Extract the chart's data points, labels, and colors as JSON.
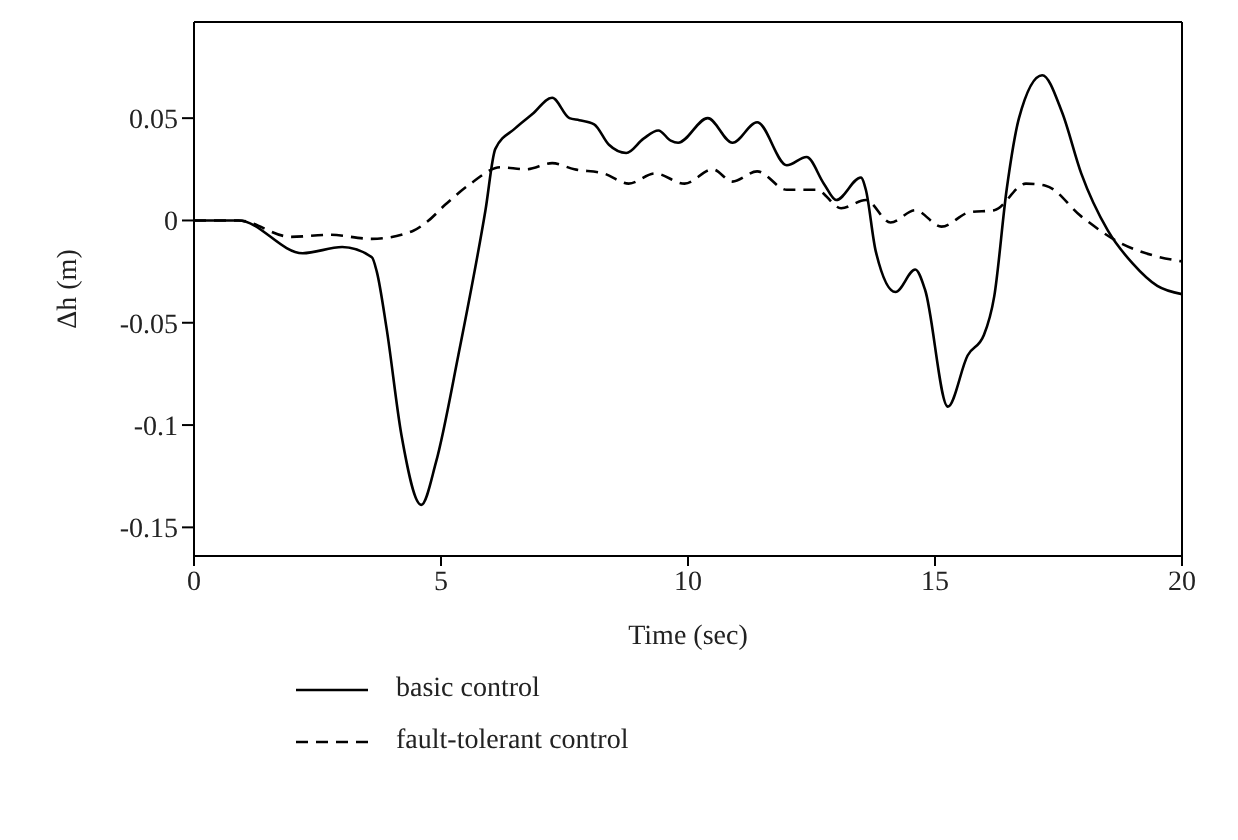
{
  "chart_data": {
    "type": "line",
    "xlabel": "Time (sec)",
    "ylabel": "Δh (m)",
    "xlim": [
      0,
      20
    ],
    "xticks": [
      0,
      5,
      10,
      15,
      20
    ],
    "ylim": [
      -0.164,
      0.097
    ],
    "yticks": [
      -0.15,
      -0.1,
      -0.05,
      0,
      0.05
    ],
    "legend": "bottom",
    "marker": "none",
    "series": [
      {
        "name": "basic control",
        "color": "#000000",
        "line_style": "solid",
        "x": [
          0,
          0.9,
          2.2,
          3.0,
          3.6,
          3.7,
          3.9,
          4.2,
          4.6,
          4.9,
          5.35,
          5.9,
          6.1,
          6.5,
          6.85,
          7.25,
          7.6,
          7.8,
          8.1,
          8.4,
          8.75,
          9.1,
          9.4,
          9.65,
          9.8,
          10.4,
          10.9,
          11.4,
          12.0,
          12.4,
          12.75,
          13.0,
          13.5,
          13.6,
          13.8,
          14.2,
          14.6,
          14.8,
          15.26,
          15.66,
          15.99,
          16.2,
          16.45,
          16.7,
          17.17,
          17.57,
          17.96,
          18.5,
          19.0,
          19.5,
          20
        ],
        "values": [
          0,
          0,
          -0.016,
          -0.013,
          -0.018,
          -0.025,
          -0.053,
          -0.105,
          -0.139,
          -0.118,
          -0.066,
          0.005,
          0.035,
          0.045,
          0.052,
          0.06,
          0.05,
          0.049,
          0.047,
          0.037,
          0.033,
          0.04,
          0.044,
          0.039,
          0.038,
          0.05,
          0.038,
          0.048,
          0.027,
          0.031,
          0.018,
          0.01,
          0.021,
          0.015,
          -0.015,
          -0.035,
          -0.024,
          -0.034,
          -0.091,
          -0.066,
          -0.056,
          -0.037,
          0.015,
          0.05,
          0.071,
          0.053,
          0.023,
          -0.005,
          -0.021,
          -0.032,
          -0.036
        ]
      },
      {
        "name": "fault-tolerant control",
        "color": "#000000",
        "line_style": "dashed",
        "x": [
          0,
          0.9,
          1.96,
          2.74,
          3.6,
          4.44,
          4.7,
          5.1,
          5.6,
          6.2,
          6.72,
          7.25,
          7.7,
          8.29,
          8.8,
          9.33,
          9.93,
          10.5,
          10.9,
          11.4,
          12.0,
          12.6,
          13.1,
          13.6,
          14.1,
          14.6,
          15.13,
          15.7,
          16.2,
          16.84,
          17.24,
          17.96,
          18.75,
          19.4,
          20
        ],
        "values": [
          0,
          0,
          -0.008,
          -0.007,
          -0.009,
          -0.005,
          -0.001,
          0.008,
          0.018,
          0.026,
          0.025,
          0.028,
          0.025,
          0.023,
          0.018,
          0.023,
          0.018,
          0.025,
          0.019,
          0.024,
          0.015,
          0.015,
          0.006,
          0.01,
          -0.001,
          0.005,
          -0.003,
          0.004,
          0.005,
          0.018,
          0.017,
          0.002,
          -0.011,
          -0.017,
          -0.02
        ]
      }
    ]
  }
}
